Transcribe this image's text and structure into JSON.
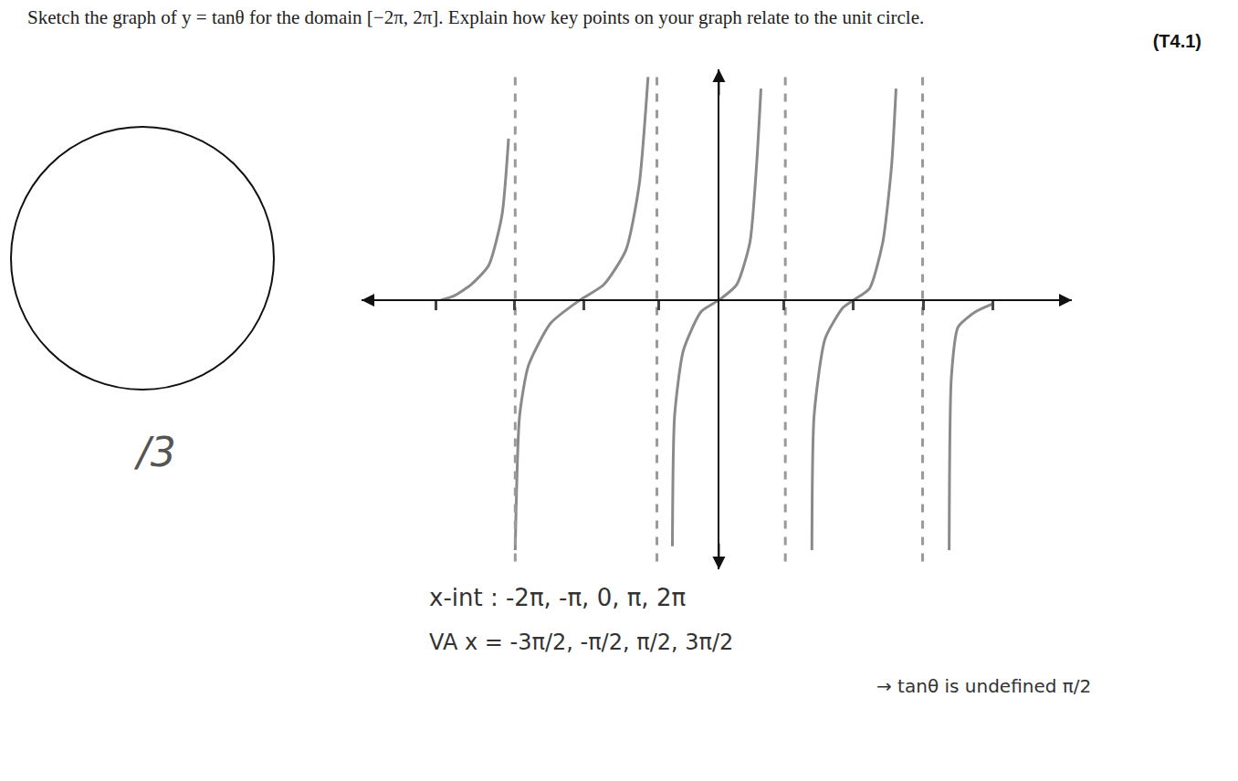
{
  "question": "Sketch the graph of y = tanθ for the domain [−2π, 2π]. Explain how key points on your graph relate to the unit circle.",
  "code": "(T4.1)",
  "score": "/3",
  "notes": [
    "x-int : -2π, -π, 0, π, 2π",
    "VA x = -3π/2, -π/2, π/2, 3π/2",
    "→ tanθ is undefined π/2"
  ],
  "chart_data": {
    "type": "line",
    "xlim": [
      -8.07,
      7.97
    ],
    "ylim": [
      -7,
      6
    ],
    "xticks": [
      -6.39,
      -4.61,
      -3.04,
      -1.36,
      1.47,
      3.04,
      4.61,
      6.18
    ],
    "yticks": [],
    "tick_labels": false,
    "grid": false,
    "series": [
      {
        "color": "#8a8a8a",
        "line_style": "solid",
        "x": [
          -6.28,
          -6.0,
          -5.6,
          -5.2,
          -4.9,
          -4.75,
          null,
          -4.6,
          -4.5,
          -4.3,
          -3.8,
          -3.14,
          -2.6,
          -2.1,
          -1.8,
          -1.6,
          null,
          -1.05,
          -1.0,
          -0.8,
          -0.4,
          0,
          0.4,
          0.7,
          0.85,
          0.95,
          null,
          2.1,
          2.15,
          2.4,
          2.8,
          3.04,
          3.4,
          3.7,
          3.9,
          4.0,
          null,
          6.18,
          5.8,
          5.4,
          5.25,
          5.2
        ],
        "values": [
          0,
          0.1,
          0.4,
          0.9,
          2.2,
          4.2,
          null,
          -6.5,
          -3,
          -1.7,
          -0.6,
          0,
          0.4,
          1.3,
          3,
          5.8,
          null,
          -6.4,
          -3,
          -1.3,
          -0.3,
          0,
          0.4,
          1.5,
          3.5,
          5.5,
          null,
          -6.5,
          -3,
          -1,
          -0.2,
          0,
          0.3,
          1.5,
          3.5,
          5.5,
          null,
          -0.1,
          -0.3,
          -0.7,
          -2,
          -6.5
        ]
      },
      {
        "color": "#9a9a9a",
        "line_style": "dashed",
        "x": [
          -4.6,
          -4.6,
          null,
          -1.4,
          -1.4,
          null,
          1.5,
          1.5,
          null,
          4.6,
          4.6
        ],
        "values": [
          -6.8,
          5.9,
          null,
          -6.8,
          5.9,
          null,
          -6.8,
          5.9,
          null,
          -6.8,
          5.9
        ]
      }
    ]
  }
}
